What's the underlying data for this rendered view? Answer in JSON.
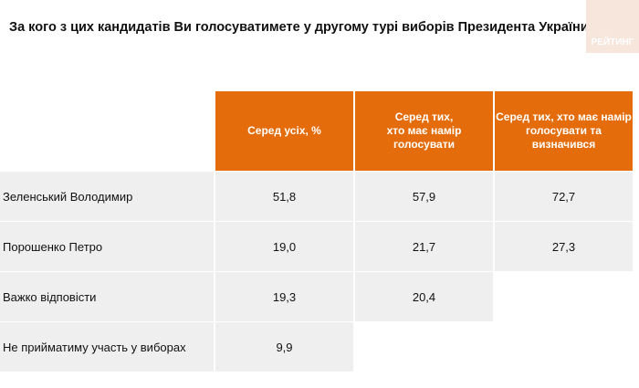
{
  "header": {
    "title": "За кого з цих кандидатів Ви голосуватимете у другому турі виборів Президента України?",
    "logo": "РЕЙТИНГ"
  },
  "table": {
    "columns": [
      [
        "Серед усіх, %"
      ],
      [
        "Серед тих,",
        "хто має намір",
        "голосувати"
      ],
      [
        "Серед тих, хто має намір",
        "голосувати та",
        "визначився"
      ]
    ],
    "rows": [
      [
        "Зеленський Володимир",
        "51,8",
        "57,9",
        "72,7"
      ],
      [
        "Порошенко Петро",
        "19,0",
        "21,7",
        "27,3"
      ],
      [
        "Важко відповісти",
        "19,3",
        "20,4",
        null
      ],
      [
        "Не прийматиму участь у виборах",
        "9,9",
        null,
        null
      ]
    ]
  }
}
